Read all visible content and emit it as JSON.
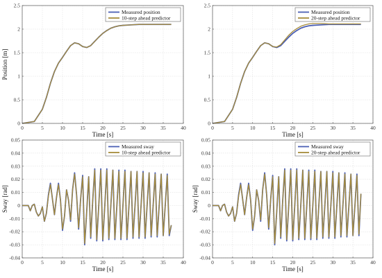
{
  "chart_data": [
    {
      "type": "line",
      "xlabel": "Time [s]",
      "ylabel": "Position [m]",
      "xlim": [
        0,
        40
      ],
      "ylim": [
        0,
        2.5
      ],
      "xticks": [
        "0",
        "5",
        "10",
        "15",
        "20",
        "25",
        "30",
        "35",
        "40"
      ],
      "yticks": [
        "0",
        "0.5",
        "1",
        "1.5",
        "2",
        "2.5"
      ],
      "grid": true,
      "legend_position": "top-right",
      "series": [
        {
          "name": "Measured position",
          "color": "#4b5fb4",
          "x": [
            0,
            3,
            5,
            6,
            7,
            8,
            9,
            10,
            11,
            12,
            13,
            14,
            15,
            16,
            17,
            18,
            19,
            20,
            21,
            22,
            23,
            24,
            25,
            27,
            29,
            31,
            33,
            35,
            37
          ],
          "y": [
            0,
            0.04,
            0.3,
            0.55,
            0.85,
            1.1,
            1.28,
            1.4,
            1.53,
            1.65,
            1.71,
            1.69,
            1.63,
            1.61,
            1.65,
            1.74,
            1.83,
            1.91,
            1.97,
            2.02,
            2.05,
            2.07,
            2.08,
            2.09,
            2.1,
            2.1,
            2.1,
            2.1,
            2.1
          ]
        },
        {
          "name": "10-step ahead predictor",
          "color": "#a58b3a",
          "x": [
            0,
            3,
            5,
            6,
            7,
            8,
            9,
            10,
            11,
            12,
            13,
            14,
            15,
            16,
            17,
            18,
            19,
            20,
            21,
            22,
            23,
            24,
            25,
            27,
            29,
            31,
            33,
            35,
            37
          ],
          "y": [
            0,
            0.04,
            0.3,
            0.55,
            0.85,
            1.1,
            1.28,
            1.4,
            1.53,
            1.65,
            1.71,
            1.69,
            1.63,
            1.61,
            1.65,
            1.74,
            1.83,
            1.91,
            1.97,
            2.02,
            2.05,
            2.07,
            2.08,
            2.09,
            2.1,
            2.1,
            2.1,
            2.1,
            2.1
          ]
        }
      ]
    },
    {
      "type": "line",
      "xlabel": "Time [s]",
      "ylabel": "",
      "xlim": [
        0,
        40
      ],
      "ylim": [
        0,
        2.5
      ],
      "xticks": [
        "0",
        "5",
        "10",
        "15",
        "20",
        "25",
        "30",
        "35",
        "40"
      ],
      "yticks": [
        "0",
        "0.5",
        "1",
        "1.5",
        "2",
        "2.5"
      ],
      "grid": true,
      "legend_position": "top-right",
      "series": [
        {
          "name": "Measured position",
          "color": "#4b5fb4",
          "x": [
            0,
            3,
            5,
            6,
            7,
            8,
            9,
            10,
            11,
            12,
            13,
            14,
            15,
            16,
            17,
            18,
            19,
            20,
            21,
            22,
            23,
            24,
            25,
            27,
            29,
            31,
            33,
            35,
            37
          ],
          "y": [
            0,
            0.04,
            0.3,
            0.55,
            0.85,
            1.1,
            1.28,
            1.4,
            1.53,
            1.65,
            1.71,
            1.69,
            1.63,
            1.61,
            1.65,
            1.74,
            1.83,
            1.91,
            1.97,
            2.02,
            2.05,
            2.07,
            2.08,
            2.09,
            2.1,
            2.1,
            2.1,
            2.1,
            2.1
          ]
        },
        {
          "name": "20-step ahead predictor",
          "color": "#a58b3a",
          "x": [
            0,
            3,
            5,
            6,
            7,
            8,
            9,
            10,
            11,
            12,
            13,
            14,
            15,
            16,
            17,
            18,
            19,
            20,
            21,
            22,
            23,
            24,
            25,
            27,
            29,
            31,
            33,
            35,
            37
          ],
          "y": [
            0,
            0.04,
            0.3,
            0.55,
            0.85,
            1.1,
            1.28,
            1.4,
            1.53,
            1.65,
            1.71,
            1.69,
            1.63,
            1.62,
            1.67,
            1.77,
            1.87,
            1.95,
            2.01,
            2.06,
            2.09,
            2.11,
            2.12,
            2.12,
            2.11,
            2.11,
            2.11,
            2.11,
            2.11
          ]
        }
      ]
    },
    {
      "type": "line",
      "xlabel": "Time [s]",
      "ylabel": "Sway [rad]",
      "xlim": [
        0,
        40
      ],
      "ylim": [
        -0.04,
        0.05
      ],
      "xticks": [
        "0",
        "5",
        "10",
        "15",
        "20",
        "25",
        "30",
        "35",
        "40"
      ],
      "yticks": [
        "-0.04",
        "-0.03",
        "-0.02",
        "-0.01",
        "0",
        "0.01",
        "0.02",
        "0.03",
        "0.04",
        "0.05"
      ],
      "grid": true,
      "legend_position": "top-right",
      "series": [
        {
          "name": "Measured sway",
          "color": "#4b5fb4",
          "x": [
            0,
            1.5,
            2,
            2.5,
            3,
            3.5,
            4,
            4.5,
            5,
            5.5,
            6,
            6.5,
            7,
            7.5,
            8,
            8.5,
            9,
            9.5,
            10,
            10.5,
            11,
            11.5,
            12,
            12.5,
            13,
            13.5,
            14,
            14.5,
            15,
            15.5,
            16,
            16.5,
            17,
            17.5,
            18,
            18.5,
            19,
            19.5,
            20,
            20.5,
            21,
            21.5,
            22,
            22.5,
            23,
            23.5,
            24,
            24.5,
            25,
            25.5,
            26,
            26.5,
            27,
            27.5,
            28,
            28.5,
            29,
            29.5,
            30,
            30.5,
            31,
            31.5,
            32,
            32.5,
            33,
            33.5,
            34,
            34.5,
            35,
            35.5,
            36,
            36.5,
            37
          ],
          "y": [
            0,
            0,
            -0.004,
            0,
            0.001,
            -0.005,
            -0.008,
            -0.006,
            -0.001,
            -0.012,
            -0.006,
            0.008,
            0.017,
            0.005,
            -0.007,
            0.006,
            0.017,
            0.004,
            -0.019,
            -0.008,
            0.012,
            0.004,
            -0.012,
            0.012,
            0.025,
            0.008,
            -0.018,
            0.005,
            0.023,
            -0.03,
            -0.005,
            0.022,
            -0.025,
            0.004,
            0.028,
            -0.027,
            0,
            0.028,
            -0.027,
            0,
            0.028,
            -0.026,
            0,
            0.027,
            -0.026,
            0,
            0.027,
            -0.026,
            0,
            0.027,
            -0.026,
            0,
            0.026,
            -0.025,
            0,
            0.026,
            -0.025,
            0,
            0.026,
            -0.025,
            0,
            0.025,
            -0.024,
            0,
            0.025,
            -0.024,
            0,
            0.024,
            -0.023,
            0,
            0.024,
            -0.023,
            -0.015
          ]
        },
        {
          "name": "10-step ahead predictor",
          "color": "#a58b3a",
          "x": [
            0,
            1.5,
            2,
            2.5,
            3,
            3.5,
            4,
            4.5,
            5,
            5.5,
            6,
            6.5,
            7,
            7.5,
            8,
            8.5,
            9,
            9.5,
            10,
            10.5,
            11,
            11.5,
            12,
            12.5,
            13,
            13.5,
            14,
            14.5,
            15,
            15.5,
            16,
            16.5,
            17,
            17.5,
            18,
            18.5,
            19,
            19.5,
            20,
            20.5,
            21,
            21.5,
            22,
            22.5,
            23,
            23.5,
            24,
            24.5,
            25,
            25.5,
            26,
            26.5,
            27,
            27.5,
            28,
            28.5,
            29,
            29.5,
            30,
            30.5,
            31,
            31.5,
            32,
            32.5,
            33,
            33.5,
            34,
            34.5,
            35,
            35.5,
            36,
            36.5,
            37
          ],
          "y": [
            0,
            0,
            -0.004,
            0,
            0.001,
            -0.005,
            -0.008,
            -0.006,
            -0.001,
            -0.012,
            -0.006,
            0.007,
            0.016,
            0.005,
            -0.007,
            0.006,
            0.016,
            0.004,
            -0.018,
            -0.008,
            0.012,
            0.004,
            -0.011,
            0.012,
            0.024,
            0.008,
            -0.017,
            0.005,
            0.022,
            -0.029,
            -0.005,
            0.022,
            -0.024,
            0.004,
            0.027,
            -0.026,
            0,
            0.027,
            -0.026,
            0,
            0.027,
            -0.025,
            0,
            0.027,
            -0.025,
            0,
            0.026,
            -0.025,
            0,
            0.026,
            -0.025,
            0,
            0.026,
            -0.024,
            0,
            0.026,
            -0.024,
            0,
            0.025,
            -0.024,
            0,
            0.025,
            -0.023,
            0,
            0.024,
            -0.023,
            0,
            0.024,
            -0.023,
            0,
            0.023,
            -0.022,
            -0.015
          ]
        }
      ]
    },
    {
      "type": "line",
      "xlabel": "Time [s]",
      "ylabel": "Sway [rad]",
      "xlim": [
        0,
        40
      ],
      "ylim": [
        -0.04,
        0.05
      ],
      "xticks": [
        "0",
        "5",
        "10",
        "15",
        "20",
        "25",
        "30",
        "35",
        "40"
      ],
      "yticks": [
        "-0.04",
        "-0.03",
        "-0.02",
        "-0.01",
        "0",
        "0.01",
        "0.02",
        "0.03",
        "0.04",
        "0.05"
      ],
      "grid": true,
      "legend_position": "top-right",
      "series": [
        {
          "name": "Measured sway",
          "color": "#4b5fb4",
          "x": [
            0,
            1.5,
            2,
            2.5,
            3,
            3.5,
            4,
            4.5,
            5,
            5.5,
            6,
            6.5,
            7,
            7.5,
            8,
            8.5,
            9,
            9.5,
            10,
            10.5,
            11,
            11.5,
            12,
            12.5,
            13,
            13.5,
            14,
            14.5,
            15,
            15.5,
            16,
            16.5,
            17,
            17.5,
            18,
            18.5,
            19,
            19.5,
            20,
            20.5,
            21,
            21.5,
            22,
            22.5,
            23,
            23.5,
            24,
            24.5,
            25,
            25.5,
            26,
            26.5,
            27,
            27.5,
            28,
            28.5,
            29,
            29.5,
            30,
            30.5,
            31,
            31.5,
            32,
            32.5,
            33,
            33.5,
            34,
            34.5,
            35,
            35.5,
            36,
            36.5,
            37
          ],
          "y": [
            0,
            0,
            -0.004,
            0,
            0.001,
            -0.005,
            -0.008,
            -0.006,
            -0.001,
            -0.012,
            -0.006,
            0.008,
            0.017,
            0.005,
            -0.007,
            0.006,
            0.017,
            0.004,
            -0.019,
            -0.008,
            0.012,
            0.004,
            -0.012,
            0.012,
            0.025,
            0.008,
            -0.018,
            0.005,
            0.023,
            -0.03,
            -0.005,
            0.022,
            -0.025,
            0.004,
            0.028,
            -0.027,
            0,
            0.028,
            -0.027,
            0,
            0.028,
            -0.026,
            0,
            0.027,
            -0.026,
            0,
            0.027,
            -0.026,
            0,
            0.027,
            -0.026,
            0,
            0.026,
            -0.025,
            0,
            0.026,
            -0.025,
            0,
            0.026,
            -0.025,
            0,
            0.025,
            -0.024,
            0,
            0.025,
            -0.024,
            0,
            0.024,
            -0.023,
            0,
            0.024,
            -0.023,
            0.009
          ]
        },
        {
          "name": "20-step ahead predictor",
          "color": "#a58b3a",
          "x": [
            0,
            1.5,
            2,
            2.5,
            3,
            3.5,
            4,
            4.5,
            5,
            5.5,
            6,
            6.5,
            7,
            7.5,
            8,
            8.5,
            9,
            9.5,
            10,
            10.5,
            11,
            11.5,
            12,
            12.5,
            13,
            13.5,
            14,
            14.5,
            15,
            15.5,
            16,
            16.5,
            17,
            17.5,
            18,
            18.5,
            19,
            19.5,
            20,
            20.5,
            21,
            21.5,
            22,
            22.5,
            23,
            23.5,
            24,
            24.5,
            25,
            25.5,
            26,
            26.5,
            27,
            27.5,
            28,
            28.5,
            29,
            29.5,
            30,
            30.5,
            31,
            31.5,
            32,
            32.5,
            33,
            33.5,
            34,
            34.5,
            35,
            35.5,
            36,
            36.5,
            37
          ],
          "y": [
            0,
            0,
            -0.004,
            0,
            0.001,
            -0.005,
            -0.008,
            -0.006,
            -0.001,
            -0.012,
            -0.006,
            0.007,
            0.016,
            0.005,
            -0.007,
            0.006,
            0.016,
            0.004,
            -0.018,
            -0.008,
            0.012,
            0.004,
            -0.011,
            0.012,
            0.024,
            0.008,
            -0.017,
            0.005,
            0.022,
            -0.029,
            -0.005,
            0.022,
            -0.024,
            0.004,
            0.027,
            -0.026,
            0,
            0.027,
            -0.026,
            0,
            0.027,
            -0.025,
            0,
            0.027,
            -0.025,
            0,
            0.026,
            -0.025,
            0,
            0.026,
            -0.025,
            0,
            0.026,
            -0.024,
            0,
            0.026,
            -0.024,
            0,
            0.025,
            -0.024,
            0,
            0.025,
            -0.023,
            0,
            0.024,
            -0.023,
            0,
            0.024,
            -0.023,
            0,
            0.023,
            -0.022,
            0.009
          ]
        }
      ]
    }
  ]
}
